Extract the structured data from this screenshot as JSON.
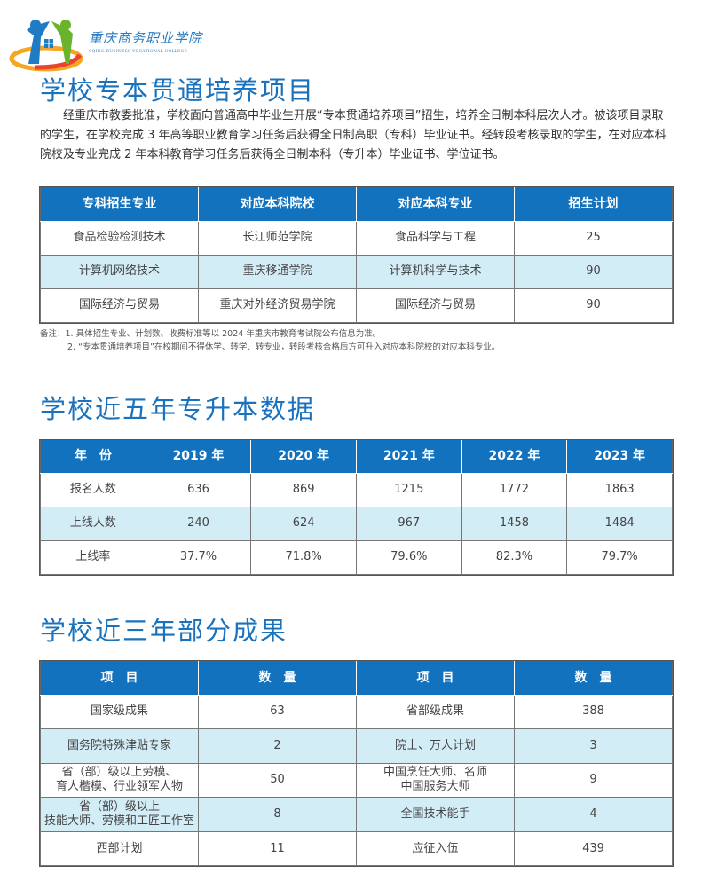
{
  "logo": {
    "name_cn": "重庆商务职业学院",
    "name_en": "CQING BUSINESS VOCATIONAL COLLEGE"
  },
  "section1": {
    "title": "学校专本贯通培养项目",
    "paragraph": "经重庆市教委批准，学校面向普通高中毕业生开展“专本贯通培养项目”招生，培养全日制本科层次人才。被该项目录取的学生，在学校完成 3 年高等职业教育学习任务后获得全日制高职（专科）毕业证书。经转段考核录取的学生，在对应本科院校及专业完成 2 年本科教育学习任务后获得全日制本科（专升本）毕业证书、学位证书。",
    "headers": [
      "专科招生专业",
      "对应本科院校",
      "对应本科专业",
      "招生计划"
    ],
    "rows": [
      [
        "食品检验检测技术",
        "长江师范学院",
        "食品科学与工程",
        "25"
      ],
      [
        "计算机网络技术",
        "重庆移通学院",
        "计算机科学与技术",
        "90"
      ],
      [
        "国际经济与贸易",
        "重庆对外经济贸易学院",
        "国际经济与贸易",
        "90"
      ]
    ],
    "notes": [
      "备注：1. 具体招生专业、计划数、收费标准等以 2024 年重庆市教育考试院公布信息为准。",
      "2. “专本贯通培养项目”在校期间不得休学、转学、转专业，转段考核合格后方可升入对应本科院校的对应本科专业。"
    ]
  },
  "section2": {
    "title": "学校近五年专升本数据",
    "headers": [
      "年　份",
      "2019 年",
      "2020 年",
      "2021 年",
      "2022 年",
      "2023 年"
    ],
    "rows": [
      [
        "报名人数",
        "636",
        "869",
        "1215",
        "1772",
        "1863"
      ],
      [
        "上线人数",
        "240",
        "624",
        "967",
        "1458",
        "1484"
      ],
      [
        "上线率",
        "37.7%",
        "71.8%",
        "79.6%",
        "82.3%",
        "79.7%"
      ]
    ]
  },
  "section3": {
    "title": "学校近三年部分成果",
    "headers": [
      "项　目",
      "数　量",
      "项　目",
      "数　量"
    ],
    "rows": [
      [
        "国家级成果",
        "63",
        "省部级成果",
        "388"
      ],
      [
        "国务院特殊津贴专家",
        "2",
        "院士、万人计划",
        "3"
      ],
      [
        "省（部）级以上劳模、\n育人楷模、行业领军人物",
        "50",
        "中国烹饪大师、名师\n中国服务大师",
        "9"
      ],
      [
        "省（部）级以上\n技能大师、劳模和工匠工作室",
        "8",
        "全国技术能手",
        "4"
      ],
      [
        "西部计划",
        "11",
        "应征入伍",
        "439"
      ]
    ]
  },
  "colors": {
    "accent": "#1372bd",
    "alt_row": "#d3edf7"
  }
}
